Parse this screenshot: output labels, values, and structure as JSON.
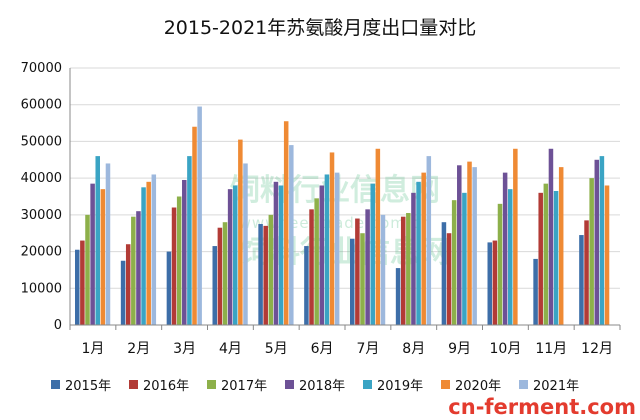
{
  "chart_data": {
    "type": "bar",
    "title": "2015-2021年苏氨酸月度出口量对比",
    "xlabel": "",
    "ylabel": "",
    "ylim": [
      0,
      70000
    ],
    "yticks": [
      0,
      10000,
      20000,
      30000,
      40000,
      50000,
      60000,
      70000
    ],
    "grid": true,
    "legend_position": "bottom",
    "categories": [
      "1月",
      "2月",
      "3月",
      "4月",
      "5月",
      "6月",
      "7月",
      "8月",
      "9月",
      "10月",
      "11月",
      "12月"
    ],
    "series": [
      {
        "name": "2015年",
        "color": "#3d6ea8",
        "values": [
          20500,
          17500,
          20000,
          21500,
          27500,
          21500,
          23500,
          15500,
          28000,
          22500,
          18000,
          24500
        ]
      },
      {
        "name": "2016年",
        "color": "#b23b36",
        "values": [
          23000,
          22000,
          32000,
          26500,
          27000,
          31500,
          29000,
          29500,
          25000,
          23000,
          36000,
          28500
        ]
      },
      {
        "name": "2017年",
        "color": "#8db04a",
        "values": [
          30000,
          29500,
          35000,
          28000,
          30000,
          34500,
          25000,
          30500,
          34000,
          33000,
          38500,
          40000
        ]
      },
      {
        "name": "2018年",
        "color": "#6d5196",
        "values": [
          38500,
          31000,
          39500,
          37000,
          39000,
          38000,
          31500,
          36000,
          43500,
          41500,
          48000,
          45000
        ]
      },
      {
        "name": "2019年",
        "color": "#3aa4c4",
        "values": [
          46000,
          37500,
          46000,
          38000,
          38000,
          41000,
          38500,
          39000,
          36000,
          37000,
          36500,
          46000
        ]
      },
      {
        "name": "2020年",
        "color": "#ef8a34",
        "values": [
          37000,
          39000,
          54000,
          50500,
          55500,
          47000,
          48000,
          41500,
          44500,
          48000,
          43000,
          38000
        ]
      },
      {
        "name": "2021年",
        "color": "#9db8dd",
        "values": [
          44000,
          41000,
          59500,
          44000,
          49000,
          41500,
          30000,
          46000,
          43000,
          null,
          null,
          null
        ]
      }
    ]
  },
  "watermark": {
    "text": "饲料行业信息网",
    "url": "www.feedtrade.com.cn",
    "sub": "饲料行业信息网"
  },
  "brand": {
    "text": "cn-ferment.com",
    "color": "#e33b2e"
  }
}
